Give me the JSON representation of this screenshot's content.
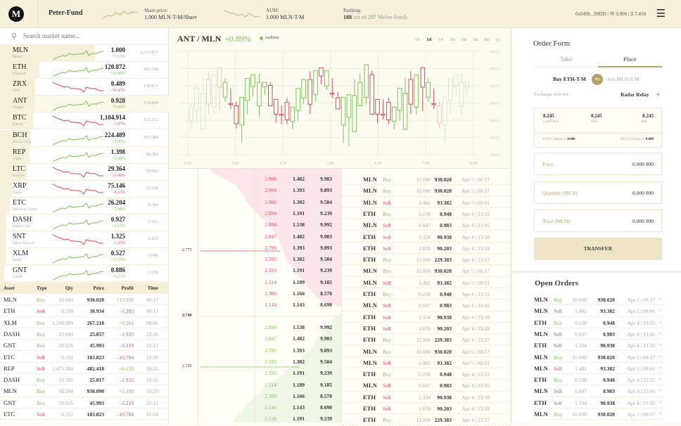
{
  "header": {
    "logo": "M",
    "fund_name": "Peter-Fund",
    "share_price_label": "Share price:",
    "share_price": "1.000 MLN-T-M/Share",
    "aum_label": "AUM:",
    "aum": "1.000 MLN-T-M",
    "ranking_label": "Ranking:",
    "ranking_rank": "188",
    "ranking_rest": "out of 287 Melon Funds",
    "wallet": "0x049b...DfDD | Ⓜ 9.000 | Ξ 7.458",
    "menu_icon": "hamburger-icon"
  },
  "search": {
    "placeholder": "Search market name..."
  },
  "markets": [
    {
      "symbol": "MLN",
      "name": "Melon",
      "price": "1.000",
      "change": "+1.33%",
      "dir": "up",
      "volume": "1,272.837",
      "selected": true
    },
    {
      "symbol": "ETH",
      "name": "Ethereum",
      "price": "120.872",
      "change": "+12.98%",
      "dir": "up",
      "volume": "182.398"
    },
    {
      "symbol": "ZRX",
      "name": "ZRX",
      "price": "0.489",
      "change": "-10.45%",
      "dir": "dn",
      "volume": "138.837"
    },
    {
      "symbol": "ANT",
      "name": "Aragon",
      "price": "0.928",
      "change": "+0.89%",
      "dir": "up",
      "volume": "134.894",
      "active": true
    },
    {
      "symbol": "BTC",
      "name": "Bitcoin",
      "price": "1,104.914",
      "change": "-1.87%",
      "dir": "dn",
      "volume": "121.372"
    },
    {
      "symbol": "BCH",
      "name": "Bitcoin Cash",
      "price": "224.489",
      "change": "+0.89%",
      "dir": "up",
      "volume": "105.384"
    },
    {
      "symbol": "REP",
      "name": "Augur",
      "price": "1.398",
      "change": "+3.48%",
      "dir": "up",
      "volume": "94.384"
    },
    {
      "symbol": "LTC",
      "name": "Litecoin",
      "price": "29.364",
      "change": "-15.48%",
      "dir": "dn",
      "volume": "74.983"
    },
    {
      "symbol": "XRP",
      "name": "Ripple",
      "price": "75.146",
      "change": "-4.13%",
      "dir": "dn",
      "volume": "12.248"
    },
    {
      "symbol": "ETC",
      "name": "Ethereum Classic",
      "price": "26.204",
      "change": "+3.48%",
      "dir": "up",
      "volume": "8.384"
    },
    {
      "symbol": "DASH",
      "name": "Digital Cash",
      "price": "0.927",
      "change": "+2.13%",
      "dir": "up",
      "volume": "3.263"
    },
    {
      "symbol": "SNT",
      "name": "Status Network",
      "price": "1.325",
      "change": "-1.23%",
      "dir": "dn",
      "volume": "3.123"
    },
    {
      "symbol": "XLM",
      "name": "Stellar",
      "price": "0.527",
      "change": "+12.13%",
      "dir": "up",
      "volume": "3.046"
    },
    {
      "symbol": "GNT",
      "name": "Golem",
      "price": "0.886",
      "change": "+9.27%",
      "dir": "up",
      "volume": "1.256"
    }
  ],
  "trades": {
    "headers": [
      "Asset",
      "Type",
      "Qty",
      "Price",
      "Profit",
      "Time"
    ],
    "rows": [
      [
        "MLN",
        "Buy",
        "10.000",
        "930.020",
        "+10.938",
        "00:17"
      ],
      [
        "ETH",
        "Sell",
        "0.318",
        "30.934",
        "-1.283",
        "00:11"
      ],
      [
        "XLM",
        "Buy",
        "1,248.000",
        "267.218",
        "+0.384",
        "00:01"
      ],
      [
        "DASH",
        "Buy",
        "23.000",
        "25.857",
        "-1.933",
        "23:45"
      ],
      [
        "GNT",
        "Buy",
        "39.826",
        "45.993",
        "-3.219",
        "22:12"
      ],
      [
        "ETC",
        "Sell",
        "0.192",
        "183.823",
        "-10.784",
        "21:34"
      ],
      [
        "REP",
        "Sell",
        "1,473.384",
        "482.418",
        "+0.133",
        "20:55"
      ],
      [
        "DASH",
        "Buy",
        "23.385",
        "25.817",
        "-1.935",
        "18:45"
      ],
      [
        "MLN",
        "Buy",
        "10.284",
        "930.090",
        "+3.198",
        "16:23"
      ],
      [
        "GNT",
        "Buy",
        "39.826",
        "45.993",
        "-3.219",
        "22:12"
      ],
      [
        "ETC",
        "Sell",
        "0.192",
        "183.823",
        "-10.784",
        "21:34"
      ]
    ]
  },
  "chart_header": {
    "pair": "ANT / MLN",
    "change": "+0.89%",
    "realtime": "realtime",
    "timeframes": [
      "1h",
      "1d",
      "1w",
      "1m",
      "2m",
      "3m",
      "6m",
      "1y"
    ],
    "active_timeframe": "1d"
  },
  "chart_data": {
    "type": "candlestick",
    "x_ticks": [
      "2:00",
      "3:00",
      "4:00",
      "5:00",
      "6:00",
      "7:00",
      "8:00"
    ],
    "y_ticks": [
      "0.0125",
      "0.0125",
      "0.0125",
      "0.0125",
      "0.0125",
      "0.0125",
      "0.0125"
    ],
    "ylim": [
      0,
      6
    ],
    "xlim": [
      "2:00",
      "8:00"
    ],
    "grid": true,
    "colors": {
      "up": "#7cc35a",
      "down": "#d54d66"
    },
    "candles": [
      {
        "t": "2:04",
        "o": 1.94,
        "h": 3.0,
        "l": 1.5,
        "c": 2.76
      },
      {
        "t": "2:11",
        "o": 2.56,
        "h": 4.02,
        "l": 1.94,
        "c": 3.85
      },
      {
        "t": "2:19",
        "o": 1.47,
        "h": 4.5,
        "l": 1.47,
        "c": 3.57
      },
      {
        "t": "2:26",
        "o": 4.37,
        "h": 4.84,
        "l": 2.35,
        "c": 2.93
      },
      {
        "t": "2:33",
        "o": 2.76,
        "h": 4.64,
        "l": 2.35,
        "c": 4.64
      },
      {
        "t": "2:40",
        "o": 5.05,
        "h": 5.05,
        "l": 2.52,
        "c": 3.92
      },
      {
        "t": "2:47",
        "o": 3.34,
        "h": 4.43,
        "l": 3.07,
        "c": 4.19
      },
      {
        "t": "2:54",
        "o": 2.97,
        "h": 3.85,
        "l": 2.66,
        "c": 2.92
      },
      {
        "t": "3:01",
        "o": 2.84,
        "h": 3.07,
        "l": 1.53,
        "c": 1.8
      },
      {
        "t": "3:08",
        "o": 1.71,
        "h": 3.33,
        "l": 0.68,
        "c": 3.33
      },
      {
        "t": "3:15",
        "o": 3.14,
        "h": 4.43,
        "l": 2.35,
        "c": 4.43
      },
      {
        "t": "3:22",
        "o": 3.96,
        "h": 4.64,
        "l": 3.37,
        "c": 4.64
      },
      {
        "t": "3:30",
        "o": 2.84,
        "h": 4.71,
        "l": 2.21,
        "c": 4.2
      },
      {
        "t": "3:37",
        "o": 3.93,
        "h": 4.2,
        "l": 3.48,
        "c": 4.2
      },
      {
        "t": "3:44",
        "o": 4.02,
        "h": 4.2,
        "l": 2.84,
        "c": 2.84
      },
      {
        "t": "3:51",
        "o": 3.21,
        "h": 3.21,
        "l": 1.84,
        "c": 2.35
      },
      {
        "t": "3:58",
        "o": 2.35,
        "h": 2.86,
        "l": 1.77,
        "c": 2.29
      },
      {
        "t": "4:05",
        "o": 3.03,
        "h": 3.3,
        "l": 1.77,
        "c": 2.02
      },
      {
        "t": "4:12",
        "o": 1.94,
        "h": 2.76,
        "l": 1.47,
        "c": 2.76
      },
      {
        "t": "4:19",
        "o": 2.56,
        "h": 3.85,
        "l": 1.94,
        "c": 3.85
      },
      {
        "t": "4:26",
        "o": 3.3,
        "h": 4.37,
        "l": 2.93,
        "c": 4.37
      },
      {
        "t": "4:34",
        "o": 4.37,
        "h": 4.84,
        "l": 2.35,
        "c": 2.93
      },
      {
        "t": "4:41",
        "o": 3.48,
        "h": 4.87,
        "l": 3.07,
        "c": 4.87
      },
      {
        "t": "4:48",
        "o": 5.05,
        "h": 5.05,
        "l": 4.09,
        "c": 4.57
      },
      {
        "t": "4:55",
        "o": 3.98,
        "h": 4.87,
        "l": 3.75,
        "c": 4.87
      },
      {
        "t": "5:02",
        "o": 3.57,
        "h": 4.43,
        "l": 3.27,
        "c": 3.52
      },
      {
        "t": "5:09",
        "o": 3.3,
        "h": 3.62,
        "l": 2.65,
        "c": 2.65
      },
      {
        "t": "5:16",
        "o": 1.71,
        "h": 3.33,
        "l": 0.68,
        "c": 3.33
      },
      {
        "t": "5:23",
        "o": 2.16,
        "h": 3.48,
        "l": 0.48,
        "c": 3.48
      },
      {
        "t": "5:30",
        "o": 1.34,
        "h": 4.37,
        "l": 1.34,
        "c": 3.44
      },
      {
        "t": "5:37",
        "o": 2.84,
        "h": 4.71,
        "l": 2.84,
        "c": 4.2
      },
      {
        "t": "5:45",
        "o": 3.33,
        "h": 5.22,
        "l": 2.93,
        "c": 5.22
      },
      {
        "t": "5:52",
        "o": 4.64,
        "h": 4.87,
        "l": 2.35,
        "c": 2.35
      },
      {
        "t": "5:59",
        "o": 3.21,
        "h": 3.21,
        "l": 1.84,
        "c": 2.35
      },
      {
        "t": "6:06",
        "o": 2.35,
        "h": 3.21,
        "l": 2.05,
        "c": 2.29
      },
      {
        "t": "6:13",
        "o": 3.03,
        "h": 3.3,
        "l": 1.77,
        "c": 2.02
      },
      {
        "t": "6:20",
        "o": 1.94,
        "h": 2.76,
        "l": 1.47,
        "c": 2.76
      },
      {
        "t": "6:27",
        "o": 2.56,
        "h": 3.85,
        "l": 1.94,
        "c": 3.85
      },
      {
        "t": "6:34",
        "o": 1.47,
        "h": 4.5,
        "l": 1.47,
        "c": 3.57
      },
      {
        "t": "6:41",
        "o": 4.37,
        "h": 4.84,
        "l": 2.35,
        "c": 2.93
      },
      {
        "t": "6:48",
        "o": 2.76,
        "h": 4.64,
        "l": 2.35,
        "c": 4.64
      },
      {
        "t": "6:56",
        "o": 5.05,
        "h": 5.05,
        "l": 2.52,
        "c": 3.92
      },
      {
        "t": "7:03",
        "o": 3.34,
        "h": 4.43,
        "l": 3.07,
        "c": 4.19
      },
      {
        "t": "7:10",
        "o": 2.97,
        "h": 3.85,
        "l": 2.66,
        "c": 2.92
      },
      {
        "t": "7:17",
        "o": 2.84,
        "h": 3.07,
        "l": 1.53,
        "c": 1.8
      },
      {
        "t": "7:24",
        "o": 1.71,
        "h": 3.33,
        "l": 0.68,
        "c": 3.33
      },
      {
        "t": "7:31",
        "o": 3.14,
        "h": 4.43,
        "l": 2.35,
        "c": 4.43
      },
      {
        "t": "7:38",
        "o": 3.96,
        "h": 4.64,
        "l": 3.37,
        "c": 4.64
      },
      {
        "t": "7:45",
        "o": 2.84,
        "h": 4.71,
        "l": 2.21,
        "c": 4.2
      },
      {
        "t": "7:52",
        "o": 3.93,
        "h": 4.2,
        "l": 3.48,
        "c": 4.2
      }
    ]
  },
  "orderbook": {
    "axis_labels": [
      "2.773",
      "2.748",
      "2.720"
    ],
    "asks": [
      [
        "2.908",
        "1.482",
        "9.983"
      ],
      [
        "2.904",
        "1.393",
        "9.893"
      ],
      [
        "2.902",
        "1.382",
        "9.584"
      ],
      [
        "2.894",
        "1.191",
        "9.239"
      ],
      [
        "2.894",
        "1.538",
        "9.992"
      ],
      [
        "2.847",
        "1.482",
        "9.983"
      ],
      [
        "2.793",
        "1.393",
        "9.893"
      ],
      [
        "2.593",
        "1.382",
        "9.584"
      ],
      [
        "2.333",
        "1.191",
        "9.239"
      ],
      [
        "2.314",
        "1.189",
        "9.185"
      ],
      [
        "2.309",
        "1.166",
        "8.570"
      ],
      [
        "1.143",
        "1.143",
        "8.690"
      ]
    ],
    "bids": [
      [
        "2.894",
        "1.538",
        "9.992"
      ],
      [
        "2.847",
        "1.482",
        "9.983"
      ],
      [
        "2.793",
        "1.393",
        "9.893"
      ],
      [
        "2.593",
        "1.382",
        "9.584"
      ],
      [
        "2.333",
        "1.191",
        "9.239"
      ],
      [
        "2.314",
        "1.189",
        "9.185"
      ],
      [
        "2.309",
        "1.166",
        "8.570"
      ],
      [
        "1.143",
        "1.143",
        "8.690"
      ],
      [
        "1.138",
        "1.191",
        "9.239"
      ]
    ]
  },
  "history": [
    [
      "MLN",
      "Buy",
      "10.000",
      "930.020",
      "Apr 5 | 00:17"
    ],
    [
      "MLN",
      "Buy",
      "10.000",
      "930.020",
      "Apr 5 | 00:17"
    ],
    [
      "MLN",
      "Sell",
      "1.482",
      "93.382",
      "Apr 5 | 00:01"
    ],
    [
      "ETH",
      "Buy",
      "0.238",
      "0.948",
      "Apr 4 | 23:55"
    ],
    [
      "MLN",
      "Sell",
      "0.847",
      "0.983",
      "Apr 4 | 23:45"
    ],
    [
      "ETH",
      "Sell",
      "1.334",
      "90.938",
      "Apr 4 | 23:30"
    ],
    [
      "ETH",
      "Sell",
      "1.039",
      "90.203",
      "Apr 4 | 23:28"
    ],
    [
      "ETH",
      "Buy",
      "12.948",
      "229.383",
      "Apr 4 | 23:27"
    ],
    [
      "MLN",
      "Buy",
      "10.000",
      "930.020",
      "Apr 5 | 00:17"
    ],
    [
      "MLN",
      "Sell",
      "1.482",
      "93.382",
      "Apr 5 | 00:01"
    ],
    [
      "ETH",
      "Buy",
      "0.238",
      "0.948",
      "Apr 4 | 23:55"
    ],
    [
      "MLN",
      "Sell",
      "0.847",
      "0.983",
      "Apr 4 | 23:45"
    ],
    [
      "ETH",
      "Sell",
      "1.334",
      "90.938",
      "Apr 4 | 23:30"
    ],
    [
      "ETH",
      "Sell",
      "1.039",
      "90.203",
      "Apr 4 | 23:28"
    ],
    [
      "ETH",
      "Buy",
      "12.948",
      "229.383",
      "Apr 4 | 23:27"
    ],
    [
      "MLN",
      "Buy",
      "10.000",
      "930.020",
      "Apr 5 | 00:17"
    ],
    [
      "MLN",
      "Sell",
      "1.482",
      "93.382",
      "Apr 5 | 00:01"
    ],
    [
      "ETH",
      "Buy",
      "0.238",
      "0.948",
      "Apr 4 | 23:55"
    ],
    [
      "MLN",
      "Sell",
      "0.847",
      "0.983",
      "Apr 4 | 23:45"
    ],
    [
      "ETH",
      "Sell",
      "1.334",
      "90.938",
      "Apr 4 | 23:30"
    ],
    [
      "ETH",
      "Sell",
      "1.039",
      "90.203",
      "Apr 4 | 23:28"
    ],
    [
      "ETH",
      "Buy",
      "12.948",
      "229.383",
      "Apr 4 | 23:27"
    ]
  ],
  "order_form": {
    "title": "Order Form",
    "tabs": [
      "Take",
      "Place"
    ],
    "active_tab": "Place",
    "buy_label": "Buy ETH-T-M",
    "sell_label": "Sell MLN-T-M",
    "exchange_label": "Exchange Selector:",
    "exchange_value": "Radar Relay",
    "last_price": "8.245",
    "last_price_label": "Last Price",
    "bid": "8.245",
    "bid_label": "Bid",
    "ask": "8.245",
    "ask_label": "Ask",
    "eth_balance_label": "ETH-T Balance:",
    "eth_balance": "0.000",
    "mln_balance_label": "MLN-T Balance:",
    "mln_balance": "0.000",
    "price_label": "Price",
    "price_value": "0.000 000",
    "quantity_label": "Quantity (MLN)",
    "quantity_value": "0.000 000",
    "total_label": "Total (MLN)",
    "total_value": "0.000 000",
    "submit": "TRANSFER"
  },
  "open_orders": {
    "title": "Open Orders",
    "rows": [
      [
        "MLN",
        "Buy",
        "10.000",
        "930.020",
        "Apr 5 | 00:17"
      ],
      [
        "MLN",
        "Sell",
        "1.482",
        "93.382",
        "Apr 5 | 00:01"
      ],
      [
        "ETH",
        "Buy",
        "0.238",
        "0.948",
        "Apr 4 | 23:55"
      ],
      [
        "MLN",
        "Sell",
        "0.847",
        "0.983",
        "Apr 4 | 23:45"
      ],
      [
        "ETH",
        "Sell",
        "1.334",
        "90.938",
        "Apr 4 | 23:30"
      ],
      [
        "MLN",
        "Buy",
        "10.000",
        "930.020",
        "Apr 5 | 00:17"
      ],
      [
        "MLN",
        "Sell",
        "1.482",
        "93.382",
        "Apr 5 | 00:01"
      ],
      [
        "ETH",
        "Buy",
        "0.238",
        "0.948",
        "Apr 4 | 23:55"
      ],
      [
        "MLN",
        "Sell",
        "0.847",
        "0.983",
        "Apr 4 | 23:45"
      ],
      [
        "ETH",
        "Sell",
        "1.334",
        "90.938",
        "Apr 4 | 23:30"
      ],
      [
        "MLN",
        "Buy",
        "10.000",
        "930.020",
        "Apr 5 | 00:17"
      ]
    ],
    "cancel_icon": "close-icon"
  },
  "colors": {
    "accent": "#b3a26a",
    "up": "#7cc35a",
    "down": "#d54d66",
    "header_bg": "#f7f1dc"
  }
}
